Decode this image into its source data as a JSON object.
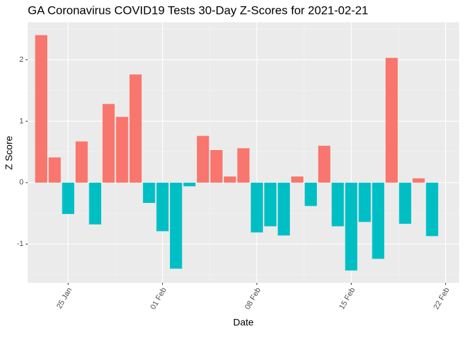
{
  "chart_data": {
    "type": "bar",
    "title": "GA Coronavirus COVID19 Tests 30-Day Z-Scores for 2021-02-21",
    "x_label": "Date",
    "y_label": "Z Score",
    "x": [
      "23 Jan",
      "24 Jan",
      "25 Jan",
      "26 Jan",
      "27 Jan",
      "28 Jan",
      "29 Jan",
      "30 Jan",
      "31 Jan",
      "01 Feb",
      "02 Feb",
      "03 Feb",
      "04 Feb",
      "05 Feb",
      "06 Feb",
      "07 Feb",
      "08 Feb",
      "09 Feb",
      "10 Feb",
      "11 Feb",
      "12 Feb",
      "13 Feb",
      "14 Feb",
      "15 Feb",
      "16 Feb",
      "17 Feb",
      "18 Feb",
      "19 Feb",
      "20 Feb",
      "21 Feb"
    ],
    "values": [
      2.4,
      0.41,
      -0.51,
      0.67,
      -0.68,
      1.28,
      1.07,
      1.76,
      -0.33,
      -0.79,
      -1.4,
      -0.06,
      0.76,
      0.53,
      0.1,
      0.56,
      -0.81,
      -0.71,
      -0.86,
      0.1,
      -0.38,
      0.6,
      -0.71,
      -1.43,
      -0.64,
      -1.24,
      2.03,
      -0.67,
      0.07,
      -0.87
    ],
    "color_positive": "#F8766D",
    "color_negative": "#00BFC4",
    "xlim": [
      "22 Jan",
      "23 Feb"
    ],
    "xticks": [
      "25 Jan",
      "01 Feb",
      "08 Feb",
      "15 Feb",
      "22 Feb"
    ],
    "ylim": [
      -1.63,
      2.61
    ],
    "yticks": [
      -1,
      0,
      1,
      2
    ],
    "grid": true
  }
}
